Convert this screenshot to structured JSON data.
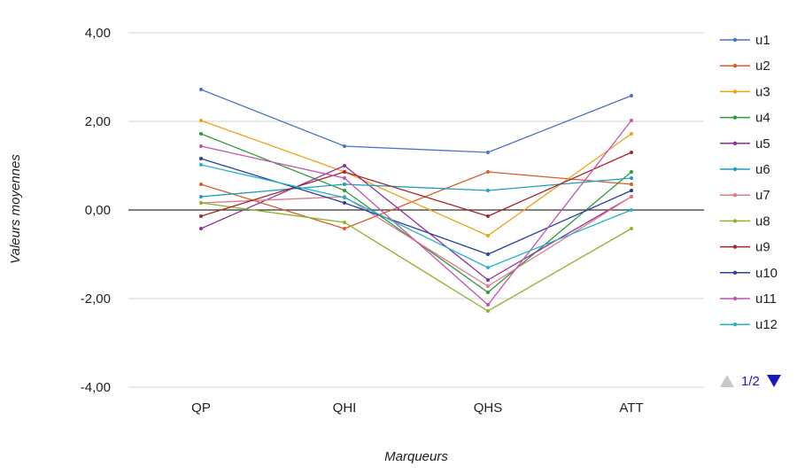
{
  "chart_data": {
    "type": "line",
    "title": "",
    "xlabel": "Marqueurs",
    "ylabel": "Valeurs moyennes",
    "categories": [
      "QP",
      "QHI",
      "QHS",
      "ATT"
    ],
    "ylim": [
      -4,
      4
    ],
    "yticks": [
      4,
      2,
      0,
      -2,
      -4
    ],
    "ytick_labels": [
      "4,00",
      "2,00",
      "0,00",
      "-2,00",
      "-4,00"
    ],
    "grid": true,
    "legend_position": "right",
    "series": [
      {
        "name": "u1",
        "color": "#4a72c4",
        "values": [
          2.72,
          1.44,
          1.3,
          2.58
        ]
      },
      {
        "name": "u2",
        "color": "#dc5a2b",
        "values": [
          0.58,
          -0.42,
          0.86,
          0.58
        ]
      },
      {
        "name": "u3",
        "color": "#f0a018",
        "values": [
          2.02,
          0.86,
          -0.58,
          1.72
        ]
      },
      {
        "name": "u4",
        "color": "#2f9a3c",
        "values": [
          1.72,
          0.44,
          -1.86,
          0.86
        ]
      },
      {
        "name": "u5",
        "color": "#8e2f9e",
        "values": [
          -0.42,
          1.0,
          -1.58,
          0.3
        ]
      },
      {
        "name": "u6",
        "color": "#1f9ec0",
        "values": [
          0.3,
          0.58,
          0.44,
          0.72
        ]
      },
      {
        "name": "u7",
        "color": "#e07a8a",
        "values": [
          0.16,
          0.3,
          -1.72,
          0.3
        ]
      },
      {
        "name": "u8",
        "color": "#8cb42a",
        "values": [
          0.16,
          -0.28,
          -2.28,
          -0.42
        ]
      },
      {
        "name": "u9",
        "color": "#a4282a",
        "values": [
          -0.14,
          0.86,
          -0.14,
          1.3
        ]
      },
      {
        "name": "u10",
        "color": "#2a3f9e",
        "values": [
          1.16,
          0.16,
          -1.0,
          0.44
        ]
      },
      {
        "name": "u11",
        "color": "#c454ae",
        "values": [
          1.44,
          0.72,
          -2.14,
          2.02
        ]
      },
      {
        "name": "u12",
        "color": "#26b4c4",
        "values": [
          1.02,
          0.28,
          -1.3,
          0.0
        ]
      }
    ]
  },
  "legend_pager": {
    "text": "1/2",
    "up_icon": "triangle-up-icon",
    "down_icon": "triangle-down-icon",
    "up_color": "#c8c8c8",
    "down_color": "#1a1ab8"
  }
}
